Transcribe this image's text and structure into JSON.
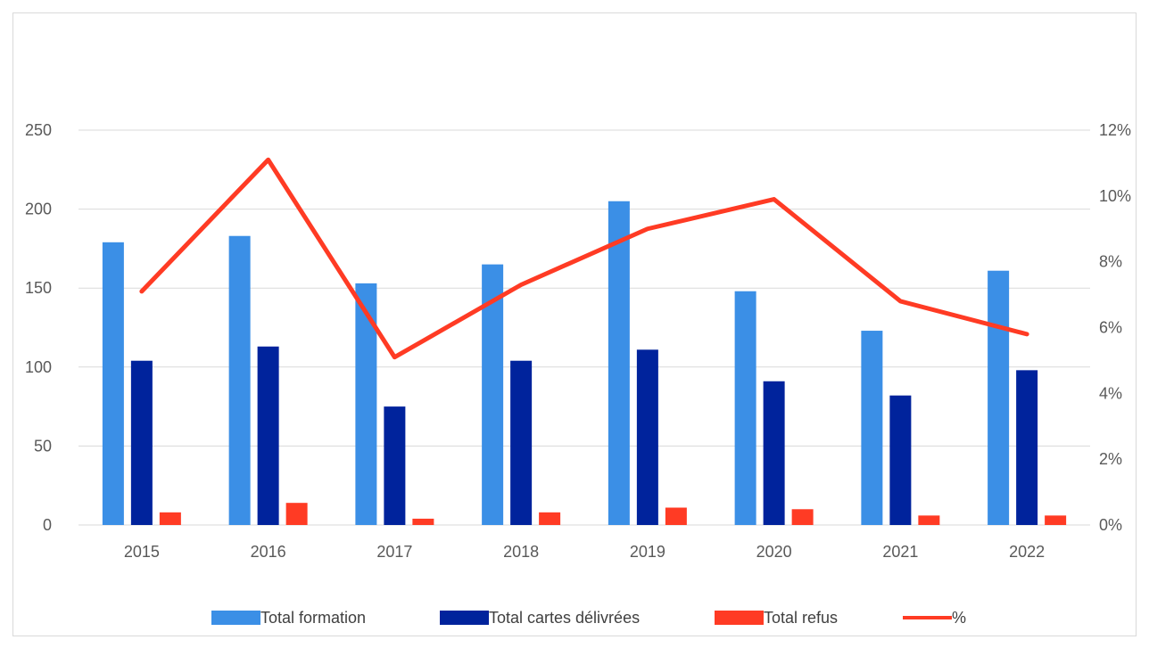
{
  "chart_data": {
    "type": "bar",
    "categories": [
      "2015",
      "2016",
      "2017",
      "2018",
      "2019",
      "2020",
      "2021",
      "2022"
    ],
    "series": [
      {
        "name": "Total formation",
        "type": "bar",
        "axis": "left",
        "color": "#3b8fe6",
        "values": [
          179,
          183,
          153,
          165,
          205,
          148,
          123,
          161
        ]
      },
      {
        "name": "Total cartes  délivrées",
        "type": "bar",
        "axis": "left",
        "color": "#00239c",
        "values": [
          104,
          113,
          75,
          104,
          111,
          91,
          82,
          98
        ]
      },
      {
        "name": "Total refus",
        "type": "bar",
        "axis": "left",
        "color": "#ff3b24",
        "values": [
          8,
          14,
          4,
          8,
          11,
          10,
          6,
          6
        ]
      },
      {
        "name": "%",
        "type": "line",
        "axis": "right",
        "color": "#ff3b24",
        "values": [
          7.1,
          11.1,
          5.1,
          7.3,
          9.0,
          9.9,
          6.8,
          5.8
        ]
      }
    ],
    "y_left": {
      "min": 0,
      "max": 250,
      "ticks": [
        "0",
        "50",
        "100",
        "150",
        "200",
        "250"
      ]
    },
    "y_right": {
      "min": 0,
      "max": 12,
      "ticks": [
        "0%",
        "2%",
        "4%",
        "6%",
        "8%",
        "10%",
        "12%"
      ]
    },
    "grid": true,
    "legend_position": "bottom",
    "title": "",
    "xlabel": "",
    "ylabel": ""
  }
}
